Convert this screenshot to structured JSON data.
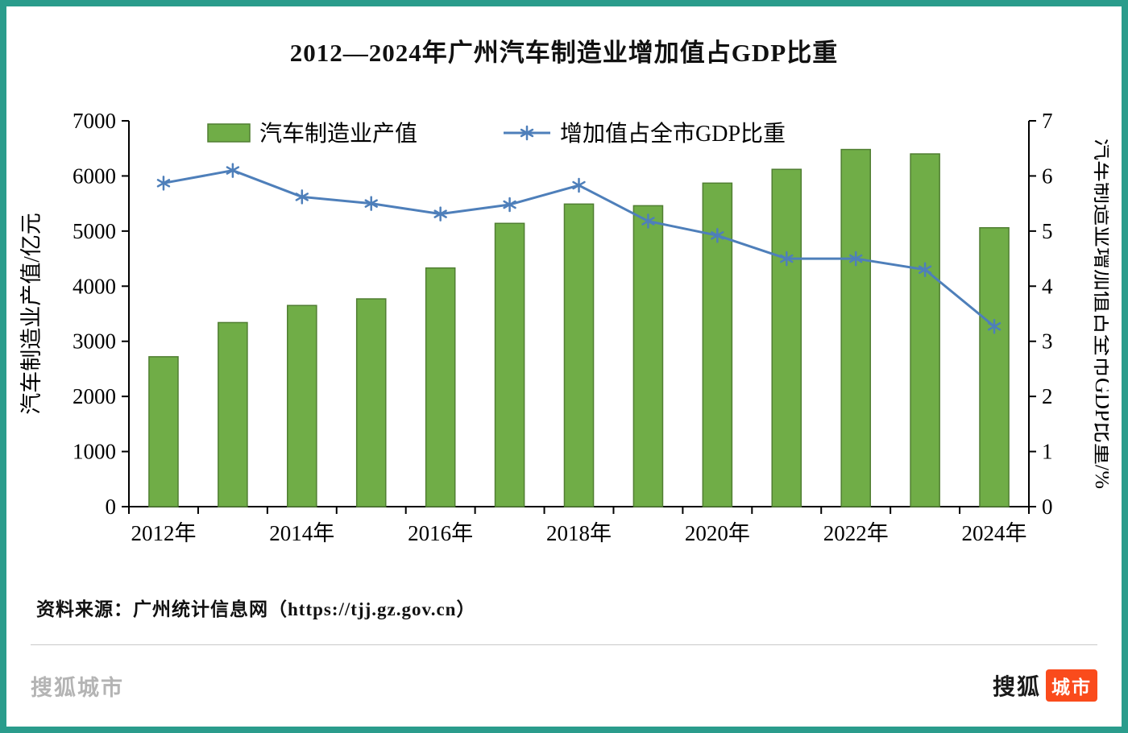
{
  "page": {
    "source": "资料来源：广州统计信息网（https://tjj.gz.gov.cn）",
    "footer_watermark": "搜狐城市",
    "logo_text": "搜狐",
    "logo_badge": "城市",
    "border_color": "#2A9C8C",
    "divider_color": "#c9c9c9"
  },
  "chart_data": {
    "type": "bar",
    "combo": "bar+line",
    "title": "2012—2024年广州汽车制造业增加值占GDP比重",
    "categories": [
      "2012年",
      "2013年",
      "2014年",
      "2015年",
      "2016年",
      "2017年",
      "2018年",
      "2019年",
      "2020年",
      "2021年",
      "2022年",
      "2023年",
      "2024年"
    ],
    "label_interval": 2,
    "series": [
      {
        "name": "汽车制造业产值",
        "type": "bar",
        "axis": "left",
        "color": "#70AD47",
        "border_color": "#507E32",
        "values": [
          2720,
          3340,
          3650,
          3770,
          4330,
          5140,
          5490,
          5460,
          5870,
          6120,
          6480,
          6400,
          5060
        ]
      },
      {
        "name": "增加值占全市GDP比重",
        "type": "line",
        "axis": "right",
        "color": "#4E7FBA",
        "marker": "asterisk",
        "values": [
          5.87,
          6.1,
          5.62,
          5.5,
          5.31,
          5.48,
          5.83,
          5.18,
          4.92,
          4.5,
          4.5,
          4.3,
          3.27
        ]
      }
    ],
    "left_axis": {
      "label": "汽车制造业产值/亿元",
      "min": 0,
      "max": 7000,
      "step": 1000
    },
    "right_axis": {
      "label": "汽车制造业增加值占全市GDP比重/%",
      "min": 0,
      "max": 7,
      "step": 1
    },
    "grid": "off",
    "legend_position": "top-inside"
  }
}
